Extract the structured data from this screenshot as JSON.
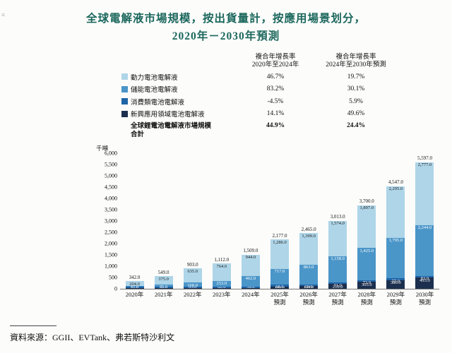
{
  "page": {
    "corner_mark": "≡"
  },
  "title": {
    "line1": "全球電解液市場規模，按出貨量計，按應用場景划分，",
    "line2": "2020年－2030年預測"
  },
  "cagr_table": {
    "col1_header_line1": "複合年增長率",
    "col1_header_line2": "2020年至2024年",
    "col2_header_line1": "複合年增長率",
    "col2_header_line2": "2024年至2030年預測",
    "rows": [
      {
        "label": "動力電池電解液",
        "color": "#aed5e8",
        "cagr1": "46.7%",
        "cagr2": "19.7%"
      },
      {
        "label": "儲能電池電解液",
        "color": "#4b96c9",
        "cagr1": "83.2%",
        "cagr2": "30.1%"
      },
      {
        "label": "消費類電池電解液",
        "color": "#1f64a6",
        "cagr1": "-4.5%",
        "cagr2": "5.9%"
      },
      {
        "label": "新興應用領域電池電解液",
        "color": "#1c2f4e",
        "cagr1": "14.1%",
        "cagr2": "49.6%"
      }
    ],
    "total_row": {
      "label_line1": "全球鋰電池電解液市場規模",
      "label_line2": "合計",
      "cagr1": "44.9%",
      "cagr2": "24.4%"
    }
  },
  "chart_data": {
    "type": "bar",
    "stacked": true,
    "title": "全球電解液市場規模，按出貨量計，按應用場景划分，2020年－2030年預測",
    "unit_label": "千噸",
    "ylim": [
      0,
      6000
    ],
    "ytick_step": 500,
    "grid": false,
    "legend_position": "top-left",
    "categories": [
      [
        "2020年"
      ],
      [
        "2021年"
      ],
      [
        "2022年"
      ],
      [
        "2023年"
      ],
      [
        "2024年"
      ],
      [
        "2025年",
        "預測"
      ],
      [
        "2026年",
        "預測"
      ],
      [
        "2027年",
        "預測"
      ],
      [
        "2028年",
        "預測"
      ],
      [
        "2029年",
        "預測"
      ],
      [
        "2030年",
        "預測"
      ]
    ],
    "series": [
      {
        "name": "動力電池電解液",
        "color": "#aed5e8",
        "label_color": "#1a1a1a",
        "values": [
          204.0,
          375.0,
          635.0,
          764.0,
          944.0,
          1286.0,
          1399.0,
          1574.0,
          1897.0,
          2295.0,
          2777.0
        ]
      },
      {
        "name": "儲能電池電解液",
        "color": "#4b96c9",
        "label_color": "#ffffff",
        "values": [
          41.0,
          75.0,
          168.0,
          253.0,
          462.0,
          717.0,
          863.0,
          1158.0,
          1425.0,
          1795.0,
          2244.0
        ]
      },
      {
        "name": "消費類電池電解液",
        "color": "#1f64a6",
        "label_color": "#ffffff",
        "values": [
          71.0,
          68.0,
          65.0,
          62.0,
          59.0,
          68.0,
          69.0,
          71.0,
          73.0,
          77.0,
          83.0
        ]
      },
      {
        "name": "新興應用領域電池電解液",
        "color": "#1c2f4e",
        "label_color": "#ffffff",
        "values": [
          26.0,
          31.0,
          35.0,
          33.0,
          44.0,
          106.0,
          134.0,
          210.0,
          305.0,
          380.0,
          493.0
        ]
      }
    ],
    "totals": [
      342.0,
      549.0,
      903.0,
      1112.0,
      1509.0,
      2177.0,
      2465.0,
      3013.0,
      3700.0,
      4547.0,
      5597.0
    ]
  },
  "footer": {
    "source": "資料來源：GGII、EVTank、弗若斯特沙利文"
  }
}
